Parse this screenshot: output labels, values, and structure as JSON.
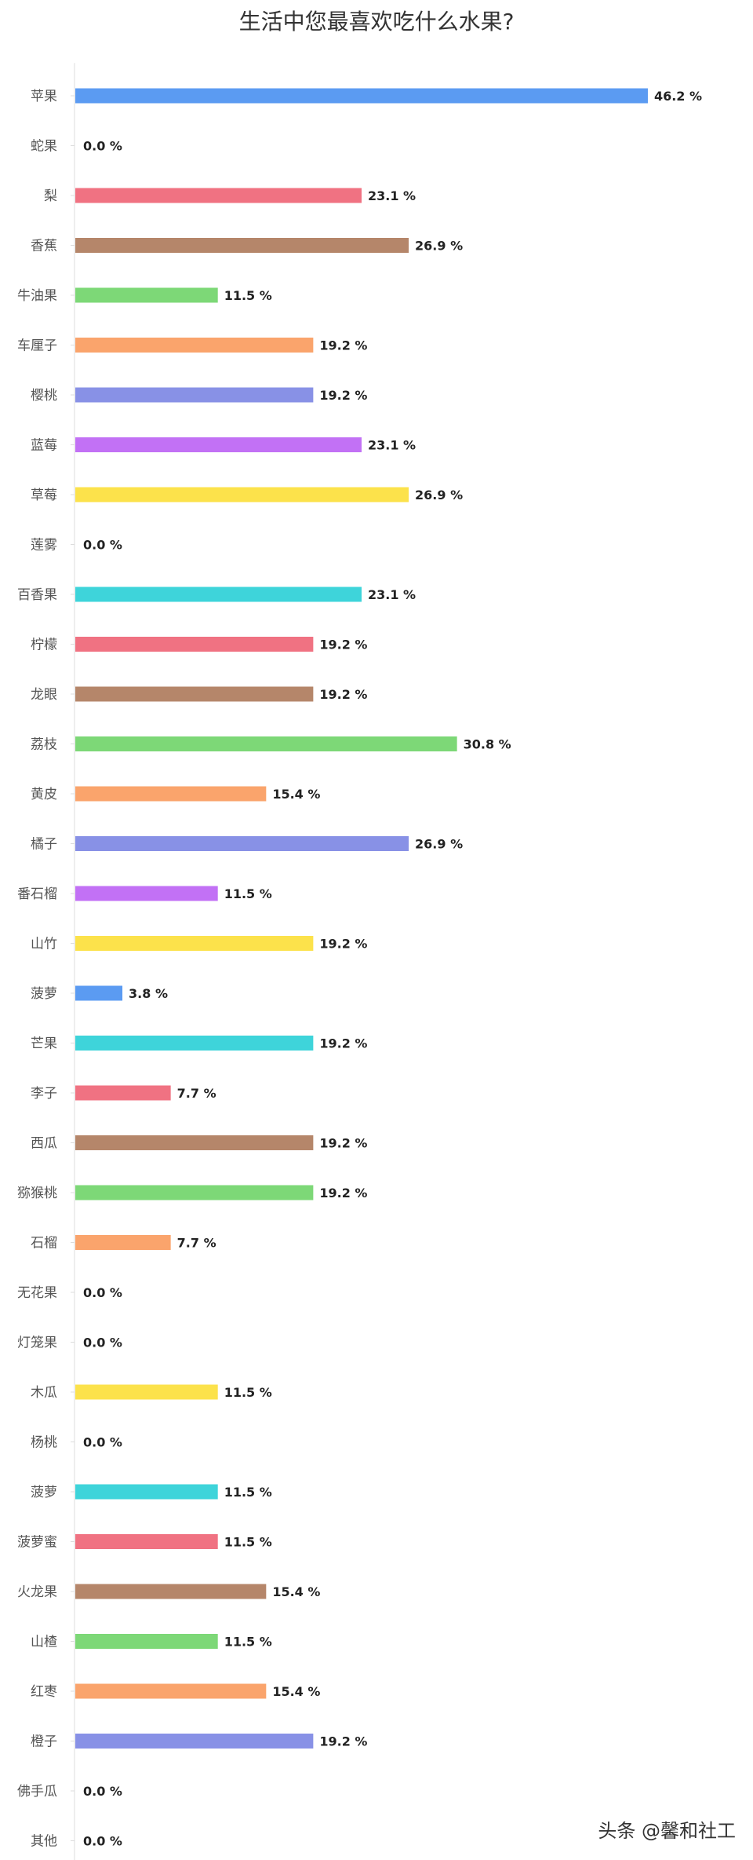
{
  "chart_data": {
    "type": "bar",
    "orientation": "horizontal",
    "title": "生活中您最喜欢吃什么水果?",
    "xlabel": "",
    "ylabel": "",
    "xlim": [
      0,
      100
    ],
    "value_suffix": " %",
    "grid": false,
    "categories": [
      "苹果",
      "蛇果",
      "梨",
      "香蕉",
      "牛油果",
      "车厘子",
      "樱桃",
      "蓝莓",
      "草莓",
      "莲雾",
      "百香果",
      "柠檬",
      "龙眼",
      "荔枝",
      "黄皮",
      "橘子",
      "番石榴",
      "山竹",
      "菠萝",
      "芒果",
      "李子",
      "西瓜",
      "猕猴桃",
      "石榴",
      "无花果",
      "灯笼果",
      "木瓜",
      "杨桃",
      "菠萝",
      "菠萝蜜",
      "火龙果",
      "山楂",
      "红枣",
      "橙子",
      "佛手瓜",
      "其他"
    ],
    "values": [
      46.2,
      0.0,
      23.1,
      26.9,
      11.5,
      19.2,
      19.2,
      23.1,
      26.9,
      0.0,
      23.1,
      19.2,
      19.2,
      30.8,
      15.4,
      26.9,
      11.5,
      19.2,
      3.8,
      19.2,
      7.7,
      19.2,
      19.2,
      7.7,
      0.0,
      0.0,
      11.5,
      0.0,
      11.5,
      11.5,
      15.4,
      11.5,
      15.4,
      19.2,
      0.0,
      0.0
    ],
    "palette": [
      "#5B9BF2",
      "#3ED4DA",
      "#F07282",
      "#B5866A",
      "#7DD877",
      "#FAA46C",
      "#8891E6",
      "#C271F5",
      "#FCE24B"
    ],
    "bar_colors": [
      "#5B9BF2",
      "#3ED4DA",
      "#F07282",
      "#B5866A",
      "#7DD877",
      "#FAA46C",
      "#8891E6",
      "#C271F5",
      "#FCE24B",
      "#5B9BF2",
      "#3ED4DA",
      "#F07282",
      "#B5866A",
      "#7DD877",
      "#FAA46C",
      "#8891E6",
      "#C271F5",
      "#FCE24B",
      "#5B9BF2",
      "#3ED4DA",
      "#F07282",
      "#B5866A",
      "#7DD877",
      "#FAA46C",
      "#8891E6",
      "#C271F5",
      "#FCE24B",
      "#5B9BF2",
      "#3ED4DA",
      "#F07282",
      "#B5866A",
      "#7DD877",
      "#FAA46C",
      "#8891E6",
      "#C271F5",
      "#FCE24B"
    ]
  },
  "watermark": "头条 @馨和社工"
}
